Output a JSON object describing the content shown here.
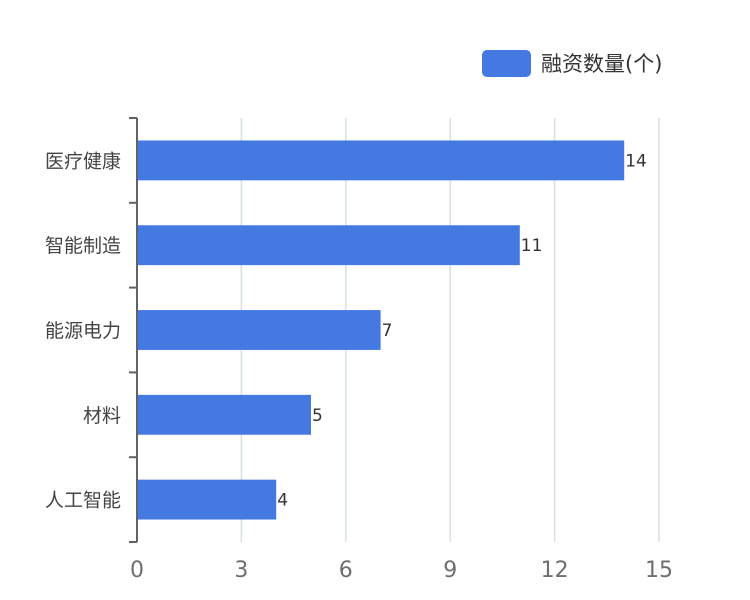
{
  "chart_data": {
    "type": "bar",
    "orientation": "horizontal",
    "categories": [
      "医疗健康",
      "智能制造",
      "能源电力",
      "材料",
      "人工智能"
    ],
    "series": [
      {
        "name": "融资数量(个)",
        "values": [
          14,
          11,
          7,
          5,
          4
        ],
        "color": "#4479e1"
      }
    ],
    "xlim": [
      0,
      15
    ],
    "xticks": [
      "0",
      "3",
      "6",
      "9",
      "12",
      "15"
    ],
    "grid": true,
    "legend_position": "top-right",
    "data_labels": true
  }
}
